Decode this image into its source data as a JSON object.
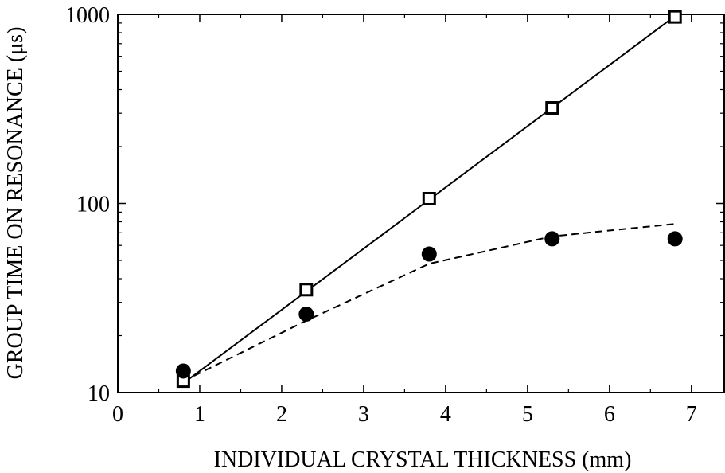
{
  "chart_data": {
    "type": "scatter",
    "xlabel": "INDIVIDUAL CRYSTAL THICKNESS (mm)",
    "ylabel": "GROUP TIME ON RESONANCE (μs)",
    "xlim": [
      0,
      7.4
    ],
    "ylim": [
      10,
      1000
    ],
    "y_scale": "log",
    "x_ticks": [
      "0",
      "1",
      "2",
      "3",
      "4",
      "5",
      "6",
      "7"
    ],
    "y_ticks": [
      "10",
      "100",
      "1000"
    ],
    "grid": false,
    "series": [
      {
        "marker": "open-square",
        "x": [
          0.8,
          2.3,
          3.8,
          5.3,
          6.8
        ],
        "y": [
          11.5,
          35,
          106,
          320,
          970
        ],
        "fit": {
          "style": "solid",
          "x": [
            0.8,
            6.8
          ],
          "y": [
            11.2,
            980
          ]
        }
      },
      {
        "marker": "filled-circle",
        "x": [
          0.8,
          2.3,
          3.8,
          5.3,
          6.8
        ],
        "y": [
          13,
          26,
          54,
          65,
          65
        ],
        "fit": {
          "style": "dashed",
          "x": [
            0.8,
            2.3,
            3.8,
            5.3,
            6.8
          ],
          "y": [
            11.5,
            24,
            48,
            67,
            78
          ]
        }
      }
    ]
  }
}
